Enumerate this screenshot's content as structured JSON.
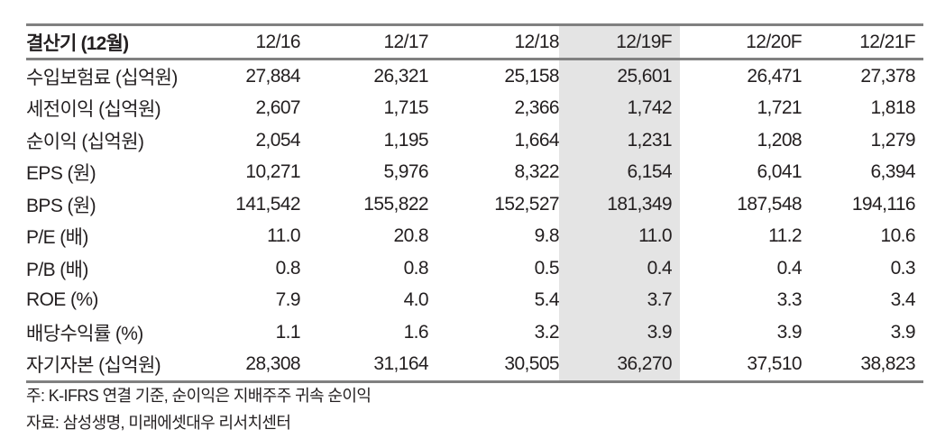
{
  "table": {
    "header": {
      "label": "결산기 (12월)",
      "columns": [
        "12/16",
        "12/17",
        "12/18",
        "12/19F",
        "12/20F",
        "12/21F"
      ],
      "highlighted_column_index": 3,
      "highlight_color": "#e4e4e4",
      "rule_color": "#808080"
    },
    "rows": [
      {
        "label": "수입보험료 (십억원)",
        "values": [
          "27,884",
          "26,321",
          "25,158",
          "25,601",
          "26,471",
          "27,378"
        ]
      },
      {
        "label": "세전이익 (십억원)",
        "values": [
          "2,607",
          "1,715",
          "2,366",
          "1,742",
          "1,721",
          "1,818"
        ]
      },
      {
        "label": "순이익 (십억원)",
        "values": [
          "2,054",
          "1,195",
          "1,664",
          "1,231",
          "1,208",
          "1,279"
        ]
      },
      {
        "label": "EPS (원)",
        "values": [
          "10,271",
          "5,976",
          "8,322",
          "6,154",
          "6,041",
          "6,394"
        ]
      },
      {
        "label": "BPS (원)",
        "values": [
          "141,542",
          "155,822",
          "152,527",
          "181,349",
          "187,548",
          "194,116"
        ]
      },
      {
        "label": "P/E (배)",
        "values": [
          "11.0",
          "20.8",
          "9.8",
          "11.0",
          "11.2",
          "10.6"
        ]
      },
      {
        "label": "P/B (배)",
        "values": [
          "0.8",
          "0.8",
          "0.5",
          "0.4",
          "0.4",
          "0.3"
        ]
      },
      {
        "label": "ROE (%)",
        "values": [
          "7.9",
          "4.0",
          "5.4",
          "3.7",
          "3.3",
          "3.4"
        ]
      },
      {
        "label": "배당수익률 (%)",
        "values": [
          "1.1",
          "1.6",
          "3.2",
          "3.9",
          "3.9",
          "3.9"
        ]
      },
      {
        "label": "자기자본 (십억원)",
        "values": [
          "28,308",
          "31,164",
          "30,505",
          "36,270",
          "37,510",
          "38,823"
        ]
      }
    ]
  },
  "notes": {
    "note": "주: K-IFRS 연결 기준, 순이익은 지배주주 귀속 순이익",
    "source": "자료: 삼성생명, 미래에셋대우 리서치센터"
  }
}
